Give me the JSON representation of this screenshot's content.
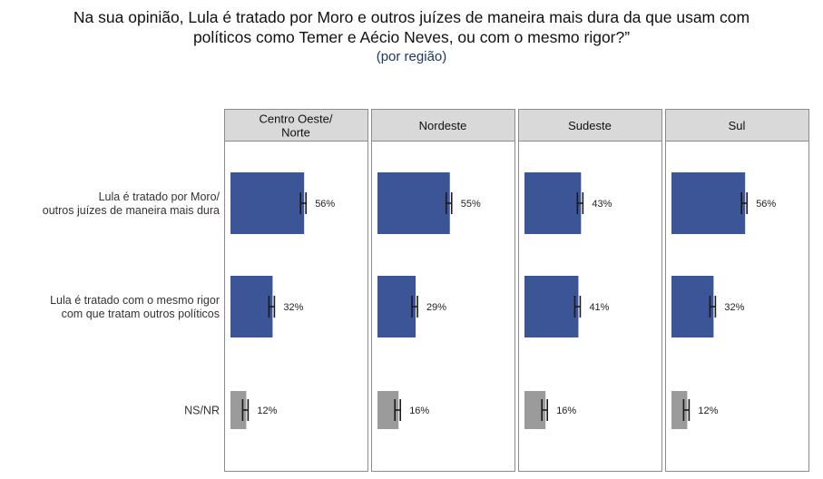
{
  "title": "Na sua opinião, Lula é tratado por Moro e outros juízes de maneira mais dura da que usam com\npolíticos como Temer e Aécio Neves, ou com o mesmo rigor?”",
  "subtitle": "(por região)",
  "colors": {
    "main": "#3b5597",
    "nsnr": "#9b9b9b",
    "header_bg": "#d9d9d9",
    "border": "#8c8c8c"
  },
  "chart_data": {
    "type": "bar",
    "orientation": "horizontal",
    "facets": [
      "Centro Oeste/\nNorte",
      "Nordeste",
      "Sudeste",
      "Sul"
    ],
    "categories": [
      "Lula é tratado por Moro/\noutros juízes de maneira mais dura",
      "Lula é tratado com o mesmo rigor\ncom que tratam outros políticos",
      "NS/NR"
    ],
    "values": [
      [
        56,
        32,
        12
      ],
      [
        55,
        29,
        16
      ],
      [
        43,
        41,
        16
      ],
      [
        56,
        32,
        12
      ]
    ],
    "value_labels": [
      [
        "56%",
        "32%",
        "12%"
      ],
      [
        "55%",
        "29%",
        "16%"
      ],
      [
        "43%",
        "41%",
        "16%"
      ],
      [
        "56%",
        "32%",
        "12%"
      ]
    ],
    "xlim": [
      0,
      100
    ],
    "error_bars": true,
    "grid": false,
    "legend": "none"
  }
}
